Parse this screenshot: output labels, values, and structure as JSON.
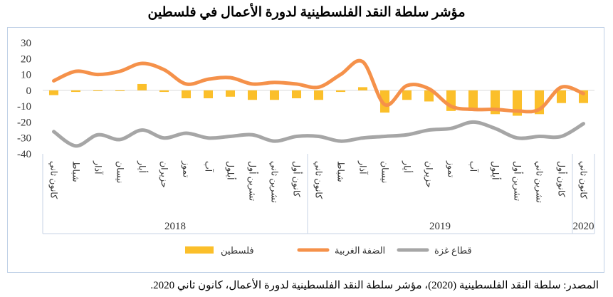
{
  "title": "مؤشر سلطة النقد الفلسطينية لدورة الأعمال في فلسطين",
  "source": "المصدر: سلطة النقد الفلسطينية (2020)، مؤشر سلطة النقد الفلسطينية لدورة الأعمال، كانون ثاني 2020.",
  "chart_data": {
    "type": "bar+line",
    "ylim": [
      -40,
      30
    ],
    "yticks": [
      30,
      20,
      10,
      0,
      -10,
      -20,
      -30,
      -40
    ],
    "categories": [
      "كانون ثاني",
      "شباط",
      "آذار",
      "نيسان",
      "أيار",
      "حزيران",
      "تموز",
      "آب",
      "أيلول",
      "تشرين أول",
      "تشرين ثاني",
      "كانون أول",
      "كانون ثاني",
      "شباط",
      "آذار",
      "نيسان",
      "أيار",
      "حزيران",
      "تموز",
      "آب",
      "أيلول",
      "تشرين أول",
      "تشرين ثاني",
      "كانون أول",
      "كانون ثاني"
    ],
    "years": [
      {
        "label": "2018",
        "count": 12
      },
      {
        "label": "2019",
        "count": 12
      },
      {
        "label": "2020",
        "count": 1
      }
    ],
    "series": [
      {
        "name": "فلسطين",
        "kind": "bar",
        "color": "#fbbf2a",
        "values": [
          -3,
          -1,
          -0.5,
          -0.5,
          4,
          -1,
          -5,
          -5,
          -4,
          -6,
          -6,
          -5,
          -6,
          -1,
          2,
          -14,
          -6,
          -7,
          -13,
          -13,
          -15,
          -16,
          -15,
          -8,
          -8
        ]
      },
      {
        "name": "الضفة الغربية",
        "kind": "line",
        "color": "#f5914a",
        "values": [
          6,
          12,
          10,
          12,
          17,
          13,
          4,
          7,
          8,
          4,
          5,
          4,
          2,
          10,
          18,
          -9,
          3,
          1,
          -10,
          -12,
          -12,
          -13,
          -12,
          2,
          -2
        ]
      },
      {
        "name": "قطاع غزة",
        "kind": "line",
        "color": "#a6a6a6",
        "values": [
          -26,
          -35,
          -28,
          -31,
          -25,
          -30,
          -27,
          -30,
          -29,
          -28,
          -32,
          -29,
          -29,
          -32,
          -30,
          -29,
          -28,
          -25,
          -24,
          -20,
          -24,
          -30,
          -29,
          -29,
          -21
        ]
      }
    ]
  }
}
